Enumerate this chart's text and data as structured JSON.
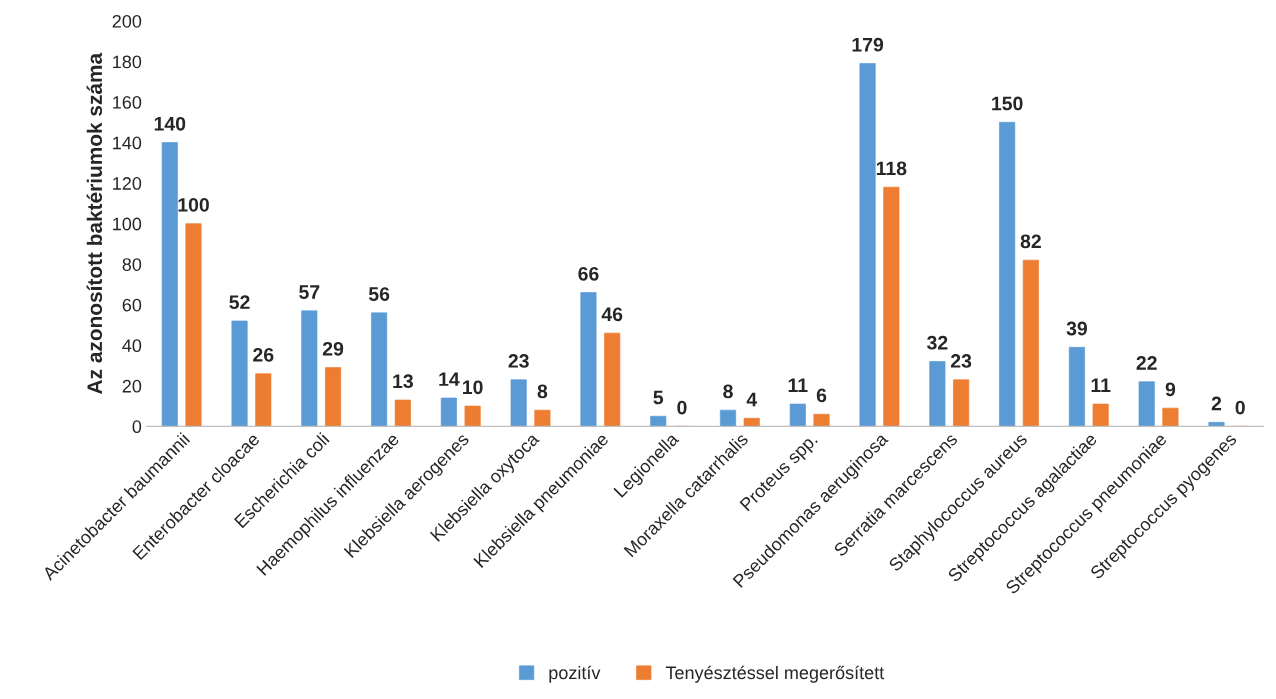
{
  "chart_data": {
    "type": "bar",
    "ylabel": "Az azonosított baktériumok száma",
    "categories": [
      "Acinetobacter baumannii",
      "Enterobacter cloacae",
      "Escherichia coli",
      "Haemophilus influenzae",
      "Klebsiella aerogenes",
      "Klebsiella oxytoca",
      "Klebsiella pneumoniae",
      "Legionella",
      "Moraxella catarrhalis",
      "Proteus spp.",
      "Pseudomonas aeruginosa",
      "Serratia marcescens",
      "Staphylococcus aureus",
      "Streptococcus agalactiae",
      "Streptococcus pneumoniae",
      "Streptococcus pyogenes"
    ],
    "series": [
      {
        "name": "pozitív",
        "color": "#5b9bd5",
        "values": [
          140,
          52,
          57,
          56,
          14,
          23,
          66,
          5,
          8,
          11,
          179,
          32,
          150,
          39,
          22,
          2
        ]
      },
      {
        "name": "Tenyésztéssel megerősített",
        "color": "#ed7d31",
        "values": [
          100,
          26,
          29,
          13,
          10,
          8,
          46,
          0,
          4,
          6,
          118,
          23,
          82,
          11,
          9,
          0
        ]
      }
    ],
    "ylim": [
      0,
      200
    ],
    "yticks": [
      0,
      20,
      40,
      60,
      80,
      100,
      120,
      140,
      160,
      180,
      200
    ],
    "data_labels": true,
    "legend": "bottom",
    "grid": false
  }
}
